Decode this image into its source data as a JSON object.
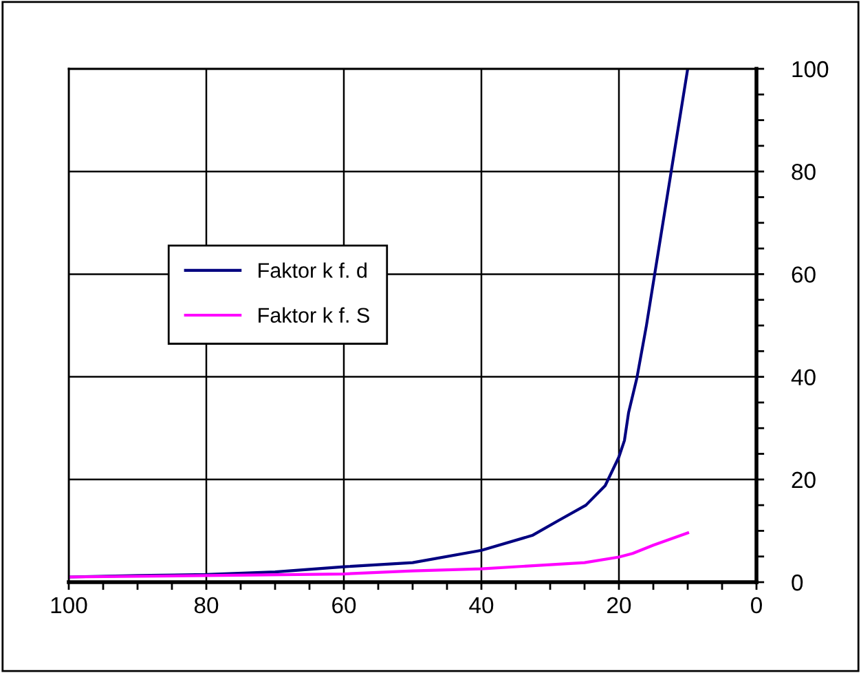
{
  "chart_data": {
    "type": "line",
    "x": [
      100,
      90,
      80,
      70,
      60,
      50,
      40,
      32.6,
      28.8,
      24.8,
      22,
      20,
      19.2,
      18.6,
      17.4,
      16,
      14.8,
      12.4,
      10
    ],
    "xlim": [
      100,
      0
    ],
    "ylim": [
      0,
      100
    ],
    "xticks": [
      100,
      {
        "value": 95,
        "label": null
      },
      {
        "value": 90,
        "label": null
      },
      {
        "value": 85,
        "label": null
      },
      80,
      {
        "value": 75,
        "label": null
      },
      {
        "value": 70,
        "label": null
      },
      {
        "value": 65,
        "label": null
      },
      60,
      {
        "value": 55,
        "label": null
      },
      {
        "value": 50,
        "label": null
      },
      {
        "value": 45,
        "label": null
      },
      40,
      {
        "value": 35,
        "label": null
      },
      {
        "value": 30,
        "label": null
      },
      {
        "value": 25,
        "label": null
      },
      20,
      {
        "value": 15,
        "label": null
      },
      {
        "value": 10,
        "label": null
      },
      {
        "value": 5,
        "label": null
      },
      0
    ],
    "yticks": [
      0,
      {
        "value": 5,
        "label": null
      },
      {
        "value": 10,
        "label": null
      },
      {
        "value": 15,
        "label": null
      },
      20,
      {
        "value": 25,
        "label": null
      },
      {
        "value": 30,
        "label": null
      },
      {
        "value": 35,
        "label": null
      },
      40,
      {
        "value": 45,
        "label": null
      },
      {
        "value": 50,
        "label": null
      },
      {
        "value": 55,
        "label": null
      },
      60,
      {
        "value": 65,
        "label": null
      },
      {
        "value": 70,
        "label": null
      },
      {
        "value": 75,
        "label": null
      },
      80,
      {
        "value": 85,
        "label": null
      },
      {
        "value": 90,
        "label": null
      },
      {
        "value": 95,
        "label": null
      },
      100
    ],
    "grid": true,
    "legend": "left",
    "marker": "none",
    "line_style": "solid",
    "series": [
      {
        "name": "Faktor k f. d",
        "color": "#000080",
        "values": [
          1,
          1.3,
          1.5,
          2,
          3,
          3.8,
          6.2,
          9.1,
          12,
          15,
          18.8,
          24.4,
          27.6,
          33,
          39.7,
          50,
          60,
          80,
          100
        ]
      },
      {
        "name": "Faktor k f. S",
        "color": "#ff00ff",
        "x": [
          100,
          80,
          60,
          50,
          40,
          30,
          25,
          20,
          18,
          15,
          10
        ],
        "values": [
          1,
          1.3,
          1.6,
          2.2,
          2.6,
          3.4,
          3.8,
          4.9,
          5.6,
          7.2,
          9.6
        ]
      }
    ]
  }
}
